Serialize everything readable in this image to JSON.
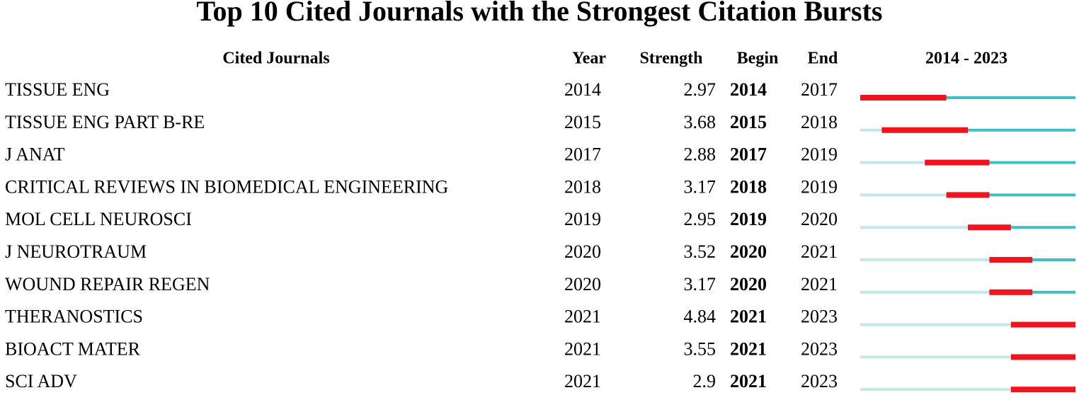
{
  "title": "Top 10 Cited Journals with the Strongest Citation Bursts",
  "headers": {
    "journal": "Cited Journals",
    "year": "Year",
    "strength": "Strength",
    "begin": "Begin",
    "end": "End",
    "timeline": "2014 - 2023"
  },
  "timeline": {
    "start": 2014,
    "end": 2023
  },
  "colors": {
    "before": "#c4e6e8",
    "after": "#3fbfc2",
    "burst": "#f0141e"
  },
  "rows": [
    {
      "journal": "TISSUE ENG",
      "year": 2014,
      "strength": 2.97,
      "begin": 2014,
      "end": 2017
    },
    {
      "journal": "TISSUE ENG PART B-RE",
      "year": 2015,
      "strength": 3.68,
      "begin": 2015,
      "end": 2018
    },
    {
      "journal": "J ANAT",
      "year": 2017,
      "strength": 2.88,
      "begin": 2017,
      "end": 2019
    },
    {
      "journal": "CRITICAL REVIEWS IN BIOMEDICAL ENGINEERING",
      "year": 2018,
      "strength": 3.17,
      "begin": 2018,
      "end": 2019
    },
    {
      "journal": "MOL CELL NEUROSCI",
      "year": 2019,
      "strength": 2.95,
      "begin": 2019,
      "end": 2020
    },
    {
      "journal": "J NEUROTRAUM",
      "year": 2020,
      "strength": 3.52,
      "begin": 2020,
      "end": 2021
    },
    {
      "journal": "WOUND REPAIR REGEN",
      "year": 2020,
      "strength": 3.17,
      "begin": 2020,
      "end": 2021
    },
    {
      "journal": "THERANOSTICS",
      "year": 2021,
      "strength": 4.84,
      "begin": 2021,
      "end": 2023
    },
    {
      "journal": "BIOACT MATER",
      "year": 2021,
      "strength": 3.55,
      "begin": 2021,
      "end": 2023
    },
    {
      "journal": "SCI ADV",
      "year": 2021,
      "strength": 2.9,
      "begin": 2021,
      "end": 2023
    }
  ]
}
